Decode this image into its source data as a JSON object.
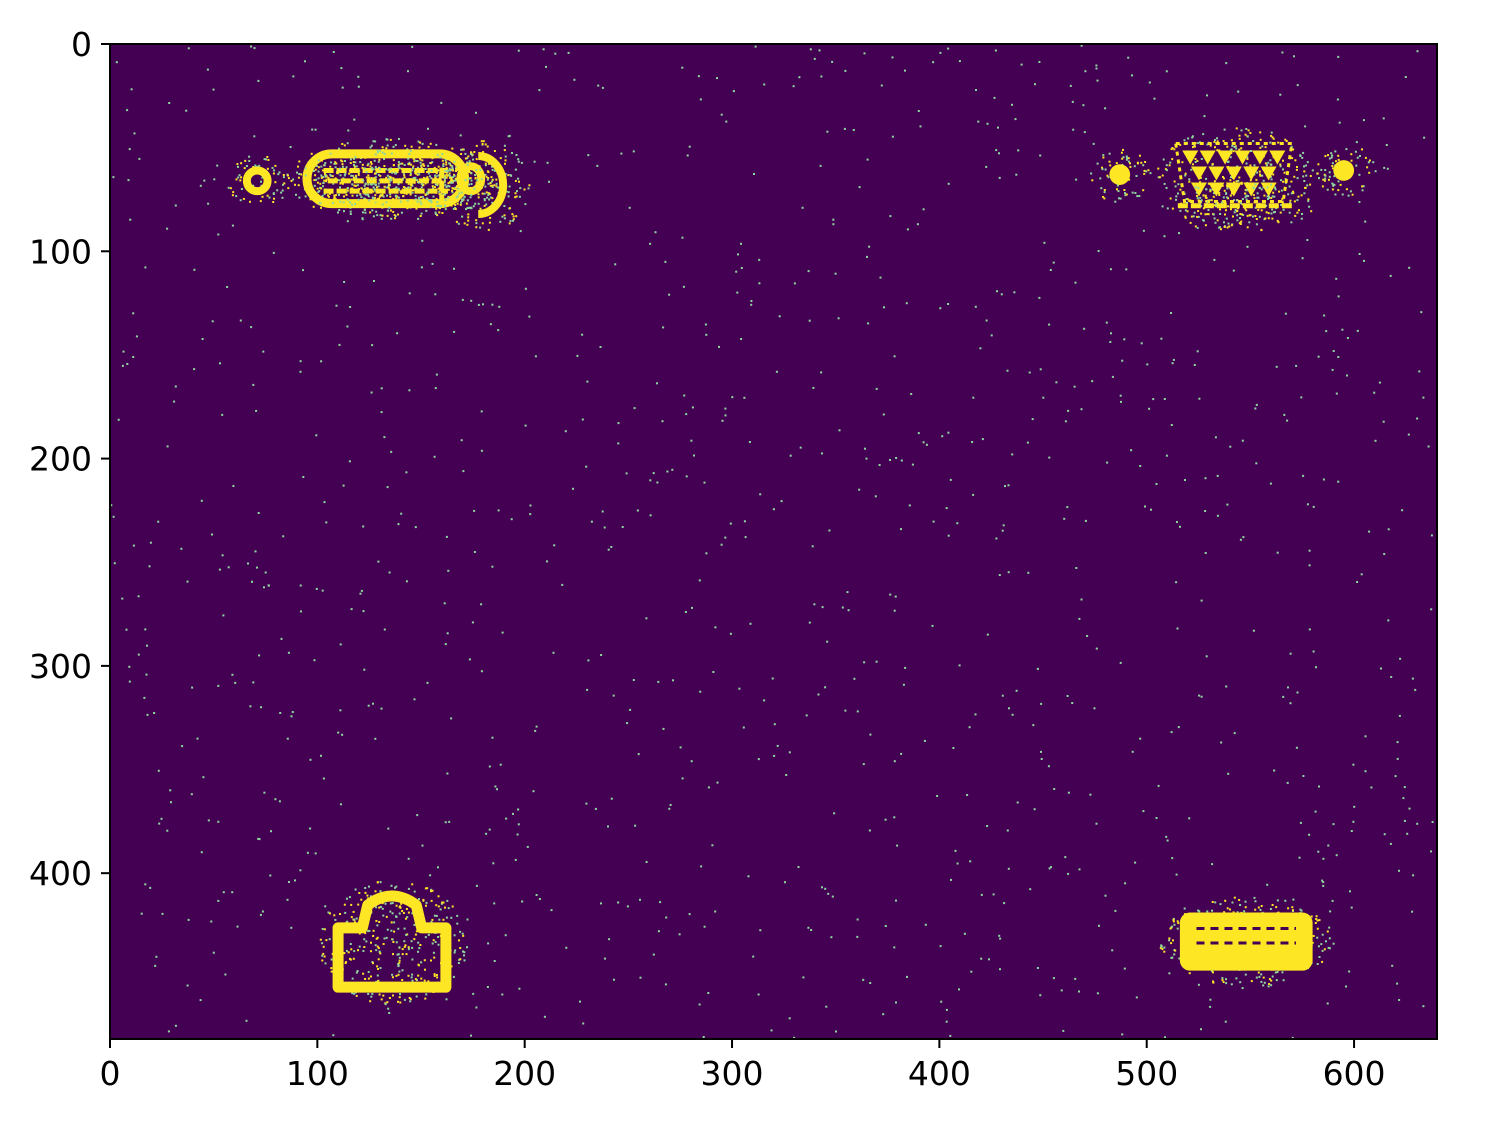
{
  "chart_data": {
    "type": "heatmap",
    "title": "",
    "xlabel": "",
    "ylabel": "",
    "xlim": [
      0,
      640
    ],
    "ylim": [
      480,
      0
    ],
    "x_ticks": [
      {
        "value": 0,
        "label": "0"
      },
      {
        "value": 100,
        "label": "100"
      },
      {
        "value": 200,
        "label": "200"
      },
      {
        "value": 300,
        "label": "300"
      },
      {
        "value": 400,
        "label": "400"
      },
      {
        "value": 500,
        "label": "500"
      },
      {
        "value": 600,
        "label": "600"
      }
    ],
    "y_ticks": [
      {
        "value": 0,
        "label": "0"
      },
      {
        "value": 100,
        "label": "100"
      },
      {
        "value": 200,
        "label": "200"
      },
      {
        "value": 300,
        "label": "300"
      },
      {
        "value": 400,
        "label": "400"
      }
    ],
    "colormap": "viridis",
    "value_range": [
      0,
      1
    ],
    "colors": {
      "background": "#440154",
      "foreground": "#fde725",
      "noise": "#8fd7a0"
    },
    "noise_density": 0.0035,
    "blobs": [
      {
        "name": "blob-top-left-small-dot",
        "shape": "ring",
        "cx": 71,
        "cy": 66,
        "rx": 5,
        "ry": 5
      },
      {
        "name": "blob-top-left-connector",
        "shape": "rounded-ring",
        "cx": 133,
        "cy": 65,
        "rx": 38,
        "ry": 12
      },
      {
        "name": "blob-top-left-connector-inner-1",
        "shape": "line",
        "x1": 103,
        "y1": 61,
        "x2": 163,
        "y2": 61
      },
      {
        "name": "blob-top-left-connector-inner-2",
        "shape": "line",
        "x1": 105,
        "y1": 66,
        "x2": 160,
        "y2": 66
      },
      {
        "name": "blob-top-left-connector-inner-3",
        "shape": "line",
        "x1": 103,
        "y1": 71,
        "x2": 163,
        "y2": 71
      },
      {
        "name": "blob-top-left-ring",
        "shape": "ring",
        "cx": 174,
        "cy": 65,
        "rx": 5,
        "ry": 6
      },
      {
        "name": "blob-top-left-arc",
        "shape": "arc",
        "cx": 180,
        "cy": 68,
        "rx": 12,
        "ry": 14
      },
      {
        "name": "blob-top-left-right-edge",
        "shape": "line",
        "x1": 160,
        "y1": 60,
        "x2": 160,
        "y2": 78
      },
      {
        "name": "blob-top-right-left-dot",
        "shape": "dot",
        "cx": 487,
        "cy": 63,
        "rx": 5,
        "ry": 5
      },
      {
        "name": "blob-top-right-vga",
        "shape": "pins",
        "cx": 542,
        "cy": 62,
        "rx": 28,
        "ry": 14
      },
      {
        "name": "blob-top-right-vga-base",
        "shape": "line",
        "x1": 515,
        "y1": 78,
        "x2": 570,
        "y2": 78
      },
      {
        "name": "blob-top-right-right-dot",
        "shape": "dot",
        "cx": 595,
        "cy": 61,
        "rx": 5,
        "ry": 5
      },
      {
        "name": "blob-bottom-left-rj45",
        "shape": "house",
        "cx": 136,
        "cy": 433,
        "rx": 26,
        "ry": 22
      },
      {
        "name": "blob-bottom-right-dvi",
        "shape": "filled-rect",
        "cx": 548,
        "cy": 433,
        "rx": 32,
        "ry": 14
      }
    ]
  }
}
